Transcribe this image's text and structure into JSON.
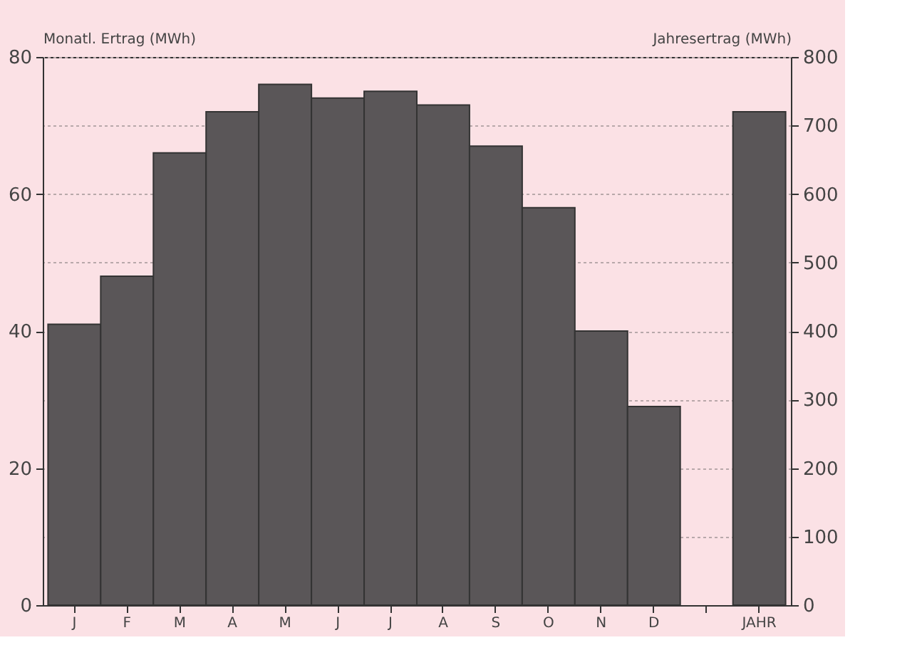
{
  "chart_data": {
    "type": "bar",
    "ylabel": "Monatl. Ertrag (MWh)",
    "y2label": "Jahresertrag (MWh)",
    "categories": [
      "J",
      "F",
      "M",
      "A",
      "M",
      "J",
      "J",
      "A",
      "S",
      "O",
      "N",
      "D",
      null,
      "JAHR"
    ],
    "series": [
      {
        "color": "#5a5658",
        "values": [
          41,
          48,
          66,
          72,
          76,
          74,
          75,
          73,
          67,
          58,
          40,
          29,
          null,
          null
        ]
      },
      {
        "color": "#5a5658",
        "axis": "y2",
        "values": [
          null,
          null,
          null,
          null,
          null,
          null,
          null,
          null,
          null,
          null,
          null,
          null,
          null,
          720
        ]
      }
    ],
    "ylim": [
      0,
      80
    ],
    "yticks": [
      0,
      20,
      40,
      60,
      80
    ],
    "y2lim": [
      0,
      800
    ],
    "y2ticks": [
      0,
      100,
      200,
      300,
      400,
      500,
      600,
      700,
      800
    ],
    "grid": "y2"
  }
}
